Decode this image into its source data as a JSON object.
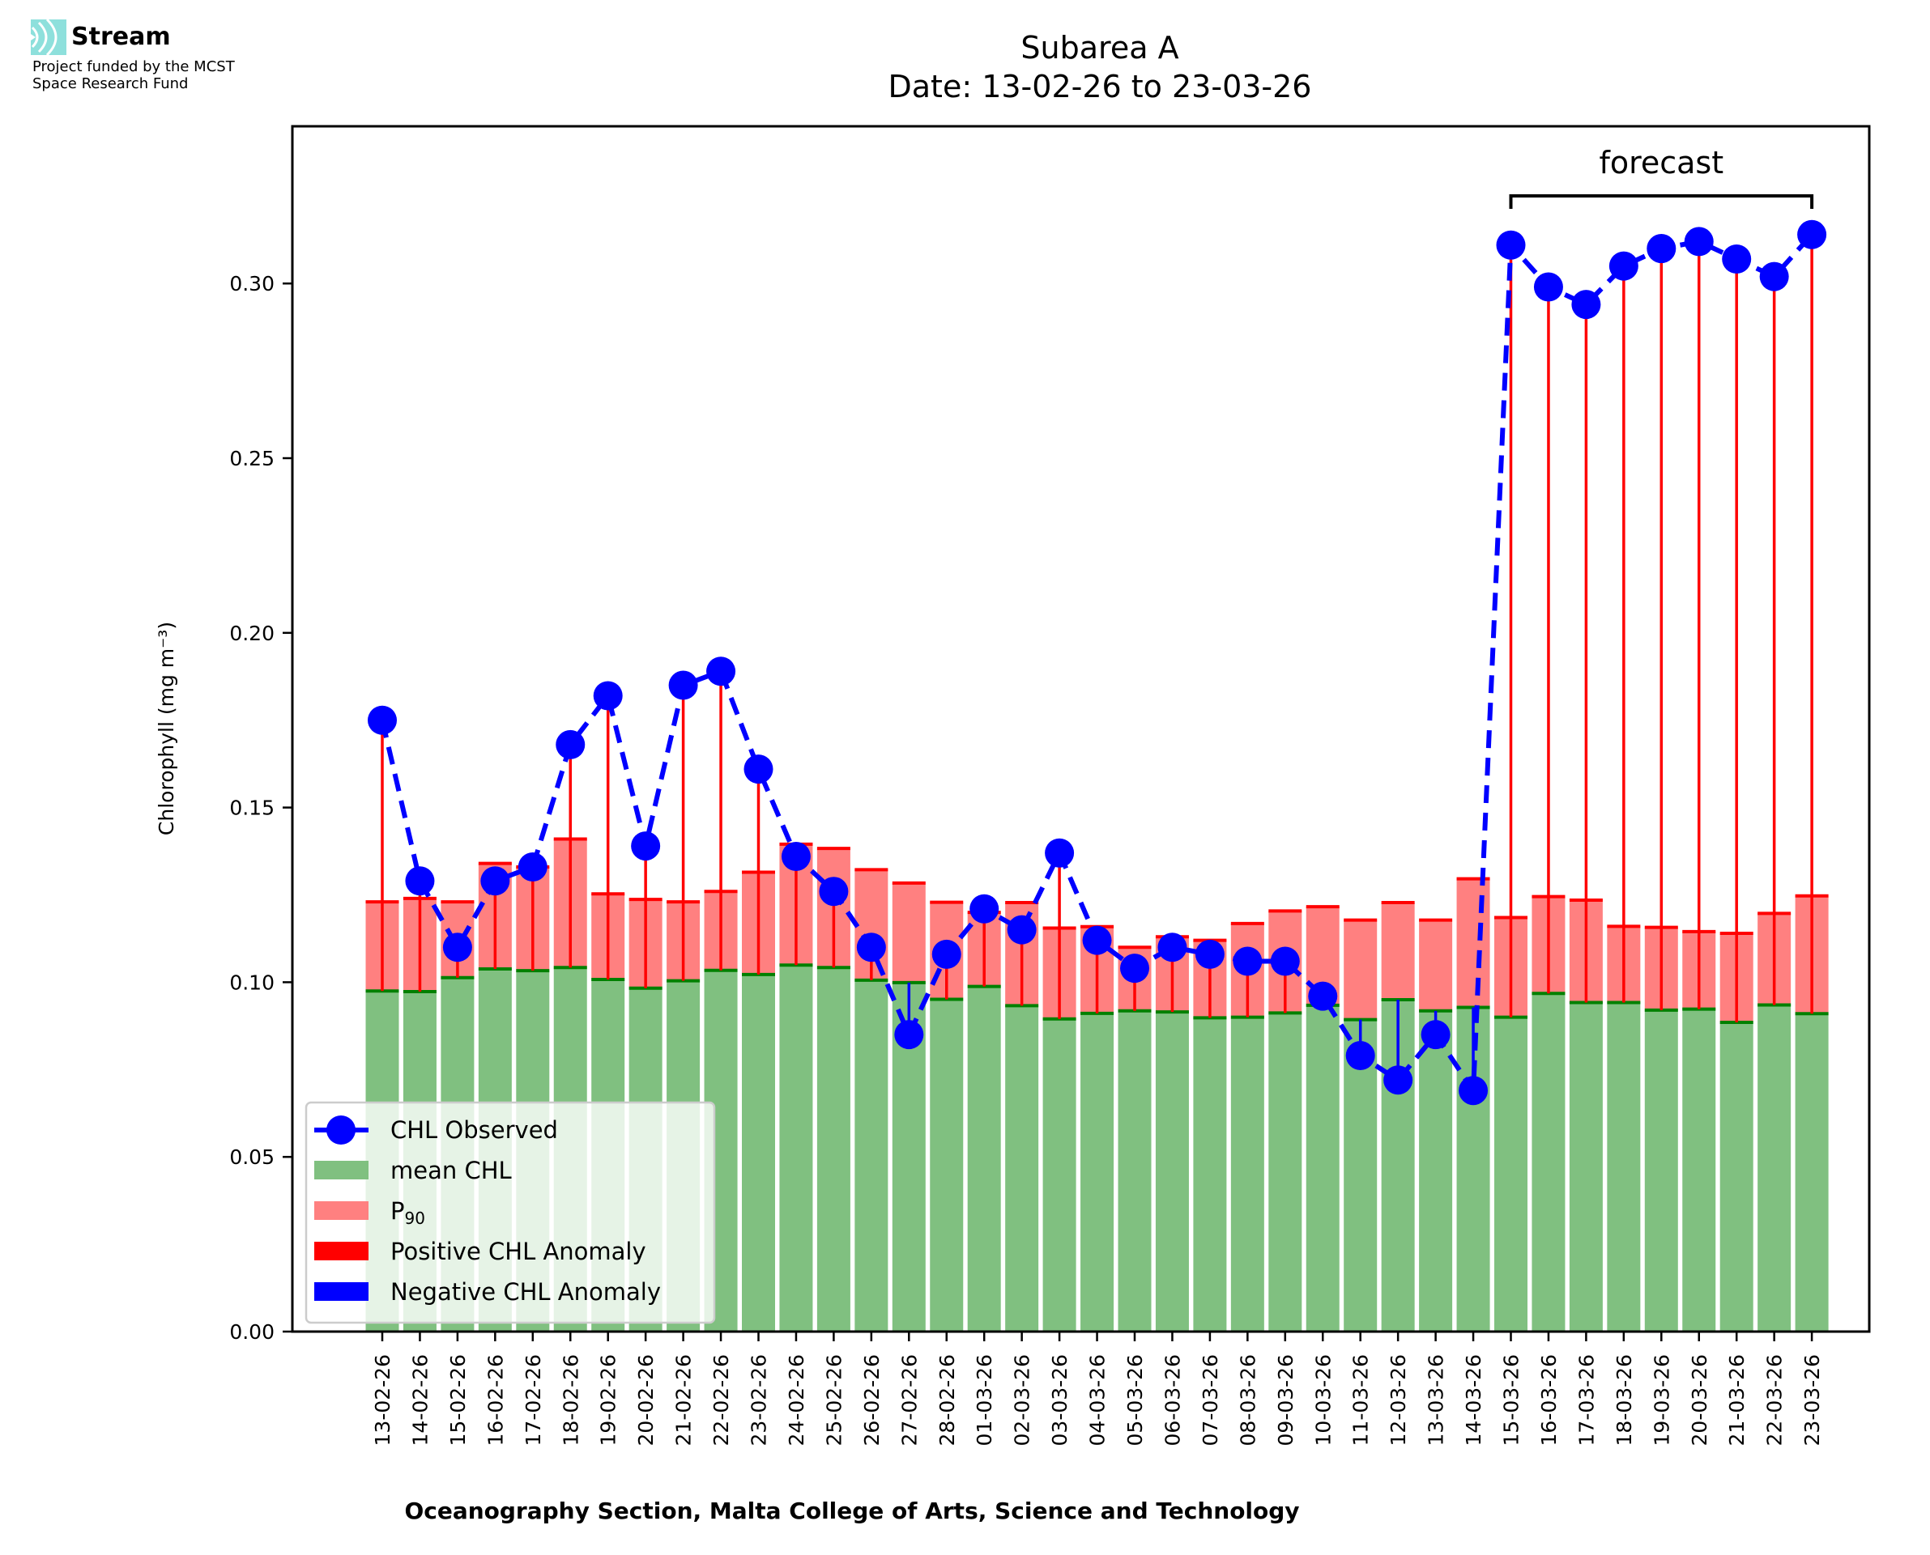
{
  "branding": {
    "name": "Stream",
    "funding_line1": "Project funded by the MCST",
    "funding_line2": "Space Research Fund"
  },
  "colors": {
    "observed": "#0000ff",
    "mean": "#80c080",
    "mean_edge": "#008000",
    "p90": "#ff8080",
    "positive_anomaly": "#ff0000",
    "negative_anomaly": "#0000ff"
  },
  "chart_data": {
    "type": "bar",
    "title": "Subarea A",
    "subtitle": "Date: 13-02-26 to 23-03-26",
    "xlabel": "Oceanography Section, Malta College of Arts, Science and Technology",
    "ylabel": "Chlorophyll (mg m⁻³)",
    "ylim": [
      0,
      0.345
    ],
    "yticks": [
      "0.00",
      "0.05",
      "0.10",
      "0.15",
      "0.20",
      "0.25",
      "0.30"
    ],
    "ytick_values": [
      0,
      0.05,
      0.1,
      0.15,
      0.2,
      0.25,
      0.3
    ],
    "grid": false,
    "legend_position": "lower-left",
    "legend": [
      {
        "label": "CHL Observed",
        "kind": "line-marker"
      },
      {
        "label": "mean CHL",
        "kind": "patch-mean"
      },
      {
        "label": "P",
        "sub": "90",
        "kind": "patch-p90"
      },
      {
        "label": "Positive CHL Anomaly",
        "kind": "patch-pos"
      },
      {
        "label": "Negative CHL Anomaly",
        "kind": "patch-neg"
      }
    ],
    "annotation": {
      "text": "forecast",
      "start_index": 30,
      "end_index": 38
    },
    "categories": [
      "13-02-26",
      "14-02-26",
      "15-02-26",
      "16-02-26",
      "17-02-26",
      "18-02-26",
      "19-02-26",
      "20-02-26",
      "21-02-26",
      "22-02-26",
      "23-02-26",
      "24-02-26",
      "25-02-26",
      "26-02-26",
      "27-02-26",
      "28-02-26",
      "01-03-26",
      "02-03-26",
      "03-03-26",
      "04-03-26",
      "05-03-26",
      "06-03-26",
      "07-03-26",
      "08-03-26",
      "09-03-26",
      "10-03-26",
      "11-03-26",
      "12-03-26",
      "13-03-26",
      "14-03-26",
      "15-03-26",
      "16-03-26",
      "17-03-26",
      "18-03-26",
      "19-03-26",
      "20-03-26",
      "21-03-26",
      "22-03-26",
      "23-03-26"
    ],
    "series": [
      {
        "name": "mean CHL",
        "values": [
          0.0975,
          0.0973,
          0.1013,
          0.1038,
          0.1033,
          0.1042,
          0.1008,
          0.0983,
          0.1004,
          0.1034,
          0.1022,
          0.1049,
          0.1042,
          0.1006,
          0.0999,
          0.0951,
          0.0988,
          0.0933,
          0.0895,
          0.0911,
          0.0918,
          0.0915,
          0.0898,
          0.09,
          0.0912,
          0.0934,
          0.0893,
          0.095,
          0.0918,
          0.0928,
          0.09,
          0.0968,
          0.0942,
          0.0942,
          0.092,
          0.0923,
          0.0885,
          0.0935,
          0.091
        ]
      },
      {
        "name": "P90",
        "values": [
          0.123,
          0.124,
          0.123,
          0.134,
          0.133,
          0.141,
          0.1253,
          0.1237,
          0.123,
          0.126,
          0.1315,
          0.1395,
          0.1383,
          0.1322,
          0.1284,
          0.1229,
          0.12,
          0.1228,
          0.1155,
          0.1159,
          0.11,
          0.113,
          0.112,
          0.1168,
          0.1204,
          0.1216,
          0.1178,
          0.1228,
          0.1178,
          0.1296,
          0.1185,
          0.1245,
          0.1235,
          0.116,
          0.1157,
          0.1145,
          0.114,
          0.1197,
          0.1247
        ]
      },
      {
        "name": "CHL Observed",
        "values": [
          0.175,
          0.129,
          0.11,
          0.129,
          0.133,
          0.168,
          0.182,
          0.139,
          0.185,
          0.189,
          0.161,
          0.136,
          0.126,
          0.11,
          0.085,
          0.108,
          0.121,
          0.115,
          0.137,
          0.112,
          0.104,
          0.11,
          0.108,
          0.106,
          0.106,
          0.096,
          0.079,
          0.072,
          0.085,
          0.069,
          0.311,
          0.299,
          0.294,
          0.305,
          0.31,
          0.312,
          0.307,
          0.302,
          0.314
        ]
      }
    ]
  }
}
